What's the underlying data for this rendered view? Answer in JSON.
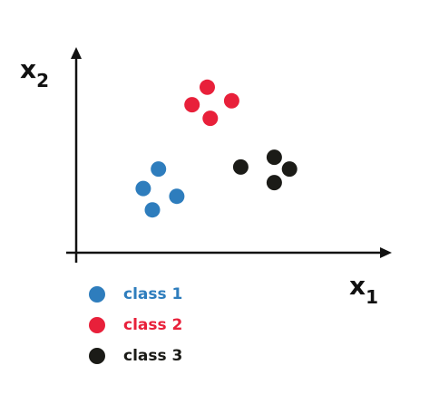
{
  "colors": {
    "class1": "#2e7dbd",
    "class2": "#e8203a",
    "class3": "#1b1b17",
    "axis": "#111111"
  },
  "axes": {
    "x_label": "x",
    "x_sub": "1",
    "y_label": "x",
    "y_sub": "2",
    "xlim": [
      0,
      10
    ],
    "ylim": [
      0,
      10
    ]
  },
  "chart_data": {
    "type": "scatter",
    "xlim": [
      0,
      10
    ],
    "ylim": [
      0,
      10
    ],
    "series": [
      {
        "name": "class 1",
        "color": "#2e7dbd",
        "x": [
          2.7,
          2.2,
          3.3,
          2.5
        ],
        "y": [
          4.3,
          3.3,
          2.9,
          2.2
        ]
      },
      {
        "name": "class 2",
        "color": "#e8203a",
        "x": [
          4.3,
          3.8,
          5.1,
          4.4
        ],
        "y": [
          8.5,
          7.6,
          7.8,
          6.9
        ]
      },
      {
        "name": "class 3",
        "color": "#1b1b17",
        "x": [
          6.5,
          5.4,
          7.0,
          6.5
        ],
        "y": [
          4.9,
          4.4,
          4.3,
          3.6
        ]
      }
    ]
  },
  "legend": {
    "items": [
      {
        "label": "class 1",
        "color": "#2e7dbd"
      },
      {
        "label": "class 2",
        "color": "#e8203a"
      },
      {
        "label": "class 3",
        "color": "#1b1b17"
      }
    ]
  }
}
